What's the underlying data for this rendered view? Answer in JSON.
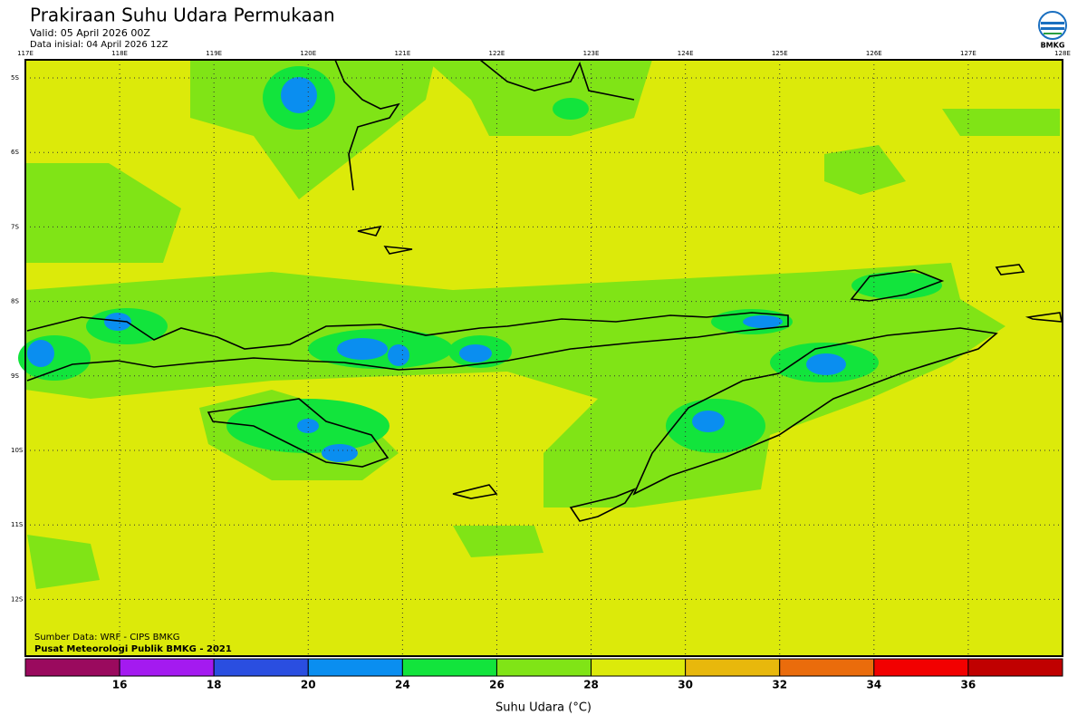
{
  "header": {
    "title": "Prakiraan Suhu Udara Permukaan",
    "valid": "Valid: 05 April 2026 00Z",
    "initial": "Data inisial: 04 April 2026 12Z",
    "logo": "BMKG"
  },
  "map": {
    "lon_ticks": [
      "117E",
      "118E",
      "119E",
      "120E",
      "121E",
      "122E",
      "123E",
      "124E",
      "125E",
      "126E",
      "127E",
      "128E"
    ],
    "lat_ticks": [
      "5S",
      "6S",
      "7S",
      "8S",
      "9S",
      "10S",
      "11S",
      "12S"
    ],
    "source": "Sumber Data: WRF - CIPS BMKG",
    "credit": "Pusat Meteorologi Publik BMKG - 2021"
  },
  "colorbar": {
    "title": "Suhu Udara (°C)",
    "labels": [
      "16",
      "18",
      "20",
      "24",
      "26",
      "28",
      "30",
      "32",
      "34",
      "36"
    ],
    "colors": [
      "#9a0a5e",
      "#a41af0",
      "#2a4ee0",
      "#0a8ef0",
      "#12e43c",
      "#80e416",
      "#dcea0a",
      "#e8b80c",
      "#ea6c0c",
      "#f20000",
      "#c00000"
    ]
  }
}
